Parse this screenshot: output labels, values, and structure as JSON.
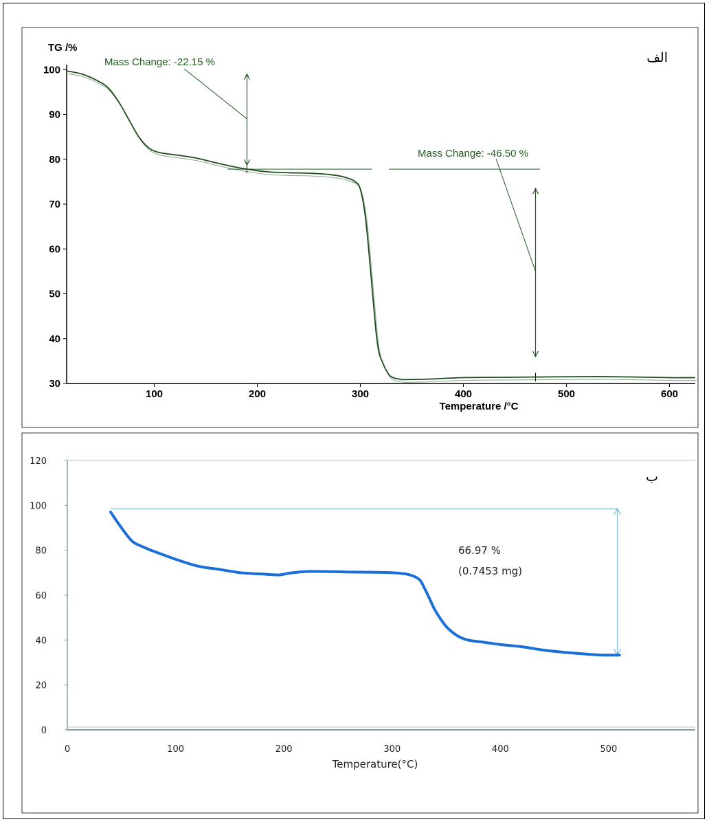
{
  "charts": [
    {
      "panel_label": "الف",
      "chart_data": {
        "type": "line",
        "xlabel": "Temperature /°C",
        "ylabel": "TG /%",
        "xlim": [
          15,
          625
        ],
        "ylim": [
          30,
          100.5
        ],
        "xticks": [
          100,
          200,
          300,
          400,
          500,
          600
        ],
        "yticks": [
          30,
          40,
          50,
          60,
          70,
          80,
          90,
          100
        ],
        "grid": false,
        "line_color": "#1d4d1d",
        "series": [
          {
            "x": [
              15,
              30,
              45,
              55,
              65,
              75,
              85,
              95,
              105,
              120,
              140,
              160,
              180,
              190,
              210,
              230,
              250,
              270,
              285,
              295,
              300,
              305,
              310,
              315,
              318,
              321,
              325,
              330,
              340,
              350,
              370,
              400,
              450,
              500,
              550,
              600,
              625
            ],
            "y": [
              99.7,
              99,
              97.5,
              96,
              93,
              89,
              85,
              82.5,
              81.5,
              81,
              80.3,
              79.2,
              78.2,
              77.8,
              77.2,
              77,
              76.9,
              76.6,
              76,
              75,
              73.3,
              67,
              55,
              42,
              37,
              35,
              33,
              31.5,
              30.9,
              30.9,
              31,
              31.3,
              31.4,
              31.5,
              31.5,
              31.3,
              31.3
            ]
          }
        ],
        "annotations": [
          {
            "text": "Mass Change: -22.15 %"
          },
          {
            "text": "Mass Change: -46.50 %"
          }
        ]
      }
    },
    {
      "panel_label": "ب",
      "chart_data": {
        "type": "line",
        "xlabel": "Temperature(°C)",
        "ylabel": "",
        "xlim": [
          0,
          580
        ],
        "ylim": [
          0,
          120
        ],
        "xticks": [
          0,
          100,
          200,
          300,
          400,
          500
        ],
        "yticks": [
          0,
          20,
          40,
          60,
          80,
          100,
          120
        ],
        "grid": false,
        "line_color": "#1a6fd8",
        "series": [
          {
            "x": [
              40,
              50,
              60,
              70,
              80,
              100,
              120,
              140,
              160,
              180,
              195,
              205,
              220,
              240,
              260,
              280,
              300,
              315,
              325,
              330,
              335,
              340,
              350,
              360,
              370,
              385,
              400,
              420,
              440,
              460,
              480,
              495,
              510
            ],
            "y": [
              97,
              90,
              84,
              81.5,
              79.5,
              76,
              73,
              71.5,
              70,
              69.4,
              69,
              69.8,
              70.5,
              70.5,
              70.3,
              70.2,
              70,
              69.2,
              67,
              63,
              58,
              53,
              46,
              42,
              40,
              39,
              38,
              37,
              35.5,
              34.5,
              33.7,
              33.3,
              33.3
            ]
          }
        ],
        "annotations": [
          {
            "text": "66.97 %"
          },
          {
            "text": "(0.7453 mg)"
          }
        ]
      }
    }
  ]
}
